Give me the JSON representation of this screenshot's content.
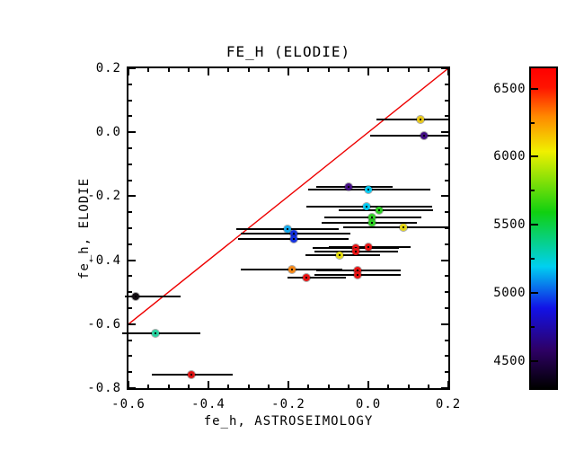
{
  "chart_data": {
    "type": "scatter",
    "title": "FE_H (ELODIE)",
    "xlabel": "fe_h, ASTROSEIMOLOGY",
    "ylabel": "fe_h, ELODIE",
    "xlim": [
      -0.6,
      0.2
    ],
    "ylim": [
      -0.8,
      0.2
    ],
    "grid": false,
    "x_major_ticks": [
      -0.6,
      -0.4,
      -0.2,
      0.0,
      0.2
    ],
    "x_tick_labels": [
      "-0.6",
      "-0.4",
      "-0.2",
      "0.0",
      "0.2"
    ],
    "x_minor_step": 0.05,
    "y_major_ticks": [
      0.2,
      0.0,
      -0.2,
      -0.4,
      -0.6,
      -0.8
    ],
    "y_tick_labels": [
      "0.2",
      "0.0",
      "-0.2",
      "-0.4",
      "-0.6",
      "-0.8"
    ],
    "y_minor_step": 0.05,
    "reference_line": {
      "name": "identity y=x",
      "color": "#ee0000",
      "x0": -0.6,
      "y0": -0.6,
      "x1": 0.2,
      "y1": 0.2
    },
    "colorbar": {
      "min": 4300,
      "max": 6650,
      "major_ticks": [
        4500,
        5000,
        5500,
        6000,
        6500
      ],
      "tick_labels": [
        "4500",
        "5000",
        "5500",
        "6000",
        "6500"
      ],
      "minor_ticks": [
        4750,
        5250,
        5750,
        6250
      ],
      "gradient": [
        {
          "pos": 0.0,
          "color": "#000000"
        },
        {
          "pos": 0.12,
          "color": "#2e0066"
        },
        {
          "pos": 0.25,
          "color": "#1212e6"
        },
        {
          "pos": 0.38,
          "color": "#00d0f0"
        },
        {
          "pos": 0.55,
          "color": "#10d010"
        },
        {
          "pos": 0.74,
          "color": "#f0f000"
        },
        {
          "pos": 0.85,
          "color": "#ff8800"
        },
        {
          "pos": 0.94,
          "color": "#ff1400"
        },
        {
          "pos": 1.0,
          "color": "#ff0000"
        }
      ]
    },
    "points": [
      {
        "x": 0.13,
        "y": 0.04,
        "temp": 6050,
        "color": "#e6c619",
        "xerr_lo": 0.02,
        "xerr_hi": 0.2
      },
      {
        "x": 0.14,
        "y": -0.01,
        "temp": 4620,
        "color": "#400d80",
        "xerr_lo": 0.005,
        "xerr_hi": 0.2
      },
      {
        "x": -0.05,
        "y": -0.17,
        "temp": 4650,
        "color": "#450f85",
        "xerr_lo": -0.13,
        "xerr_hi": 0.06
      },
      {
        "x": 0.0,
        "y": -0.18,
        "temp": 5190,
        "color": "#00c8f0",
        "xerr_lo": -0.15,
        "xerr_hi": 0.155
      },
      {
        "x": -0.005,
        "y": -0.232,
        "temp": 5190,
        "color": "#00c8f0",
        "xerr_lo": -0.155,
        "xerr_hi": 0.16
      },
      {
        "x": 0.027,
        "y": -0.245,
        "temp": 5660,
        "color": "#2ccc22",
        "xerr_lo": -0.075,
        "xerr_hi": 0.162
      },
      {
        "x": 0.008,
        "y": -0.266,
        "temp": 5660,
        "color": "#2ccc22",
        "xerr_lo": -0.11,
        "xerr_hi": 0.132
      },
      {
        "x": 0.008,
        "y": -0.282,
        "temp": 5660,
        "color": "#2ccc22",
        "xerr_lo": -0.117,
        "xerr_hi": 0.122
      },
      {
        "x": 0.087,
        "y": -0.298,
        "temp": 6020,
        "color": "#e2d414",
        "xerr_lo": -0.062,
        "xerr_hi": 0.2
      },
      {
        "x": -0.203,
        "y": -0.302,
        "temp": 5120,
        "color": "#12aaee",
        "xerr_lo": -0.33,
        "xerr_hi": -0.075
      },
      {
        "x": -0.186,
        "y": -0.318,
        "temp": 4930,
        "color": "#1330dd",
        "xerr_lo": -0.32,
        "xerr_hi": -0.045
      },
      {
        "x": -0.186,
        "y": -0.333,
        "temp": 4930,
        "color": "#1330dd",
        "xerr_lo": -0.325,
        "xerr_hi": -0.05
      },
      {
        "x": -0.031,
        "y": -0.362,
        "temp": 6520,
        "color": "#e61212",
        "xerr_lo": -0.14,
        "xerr_hi": 0.077
      },
      {
        "x": 0.0,
        "y": -0.36,
        "temp": 6520,
        "color": "#e61212",
        "xerr_lo": -0.1,
        "xerr_hi": 0.105
      },
      {
        "x": -0.031,
        "y": -0.374,
        "temp": 6520,
        "color": "#e61212",
        "xerr_lo": -0.135,
        "xerr_hi": 0.075
      },
      {
        "x": -0.072,
        "y": -0.384,
        "temp": 6010,
        "color": "#e4dc12",
        "xerr_lo": -0.157,
        "xerr_hi": 0.029
      },
      {
        "x": -0.192,
        "y": -0.428,
        "temp": 6240,
        "color": "#f08414",
        "xerr_lo": -0.32,
        "xerr_hi": -0.065
      },
      {
        "x": -0.028,
        "y": -0.432,
        "temp": 6460,
        "color": "#e61212",
        "xerr_lo": -0.13,
        "xerr_hi": 0.08
      },
      {
        "x": -0.028,
        "y": -0.446,
        "temp": 6460,
        "color": "#e61212",
        "xerr_lo": -0.135,
        "xerr_hi": 0.082
      },
      {
        "x": -0.154,
        "y": -0.455,
        "temp": 6480,
        "color": "#e61212",
        "xerr_lo": -0.202,
        "xerr_hi": -0.057
      },
      {
        "x": -0.582,
        "y": -0.513,
        "temp": 4320,
        "color": "#140f14",
        "xerr_lo": -0.609,
        "xerr_hi": -0.47
      },
      {
        "x": -0.532,
        "y": -0.628,
        "temp": 5430,
        "color": "#28d2a0",
        "xerr_lo": -0.616,
        "xerr_hi": -0.42
      },
      {
        "x": -0.443,
        "y": -0.757,
        "temp": 6500,
        "color": "#dd1414",
        "xerr_lo": -0.541,
        "xerr_hi": -0.34
      }
    ]
  }
}
